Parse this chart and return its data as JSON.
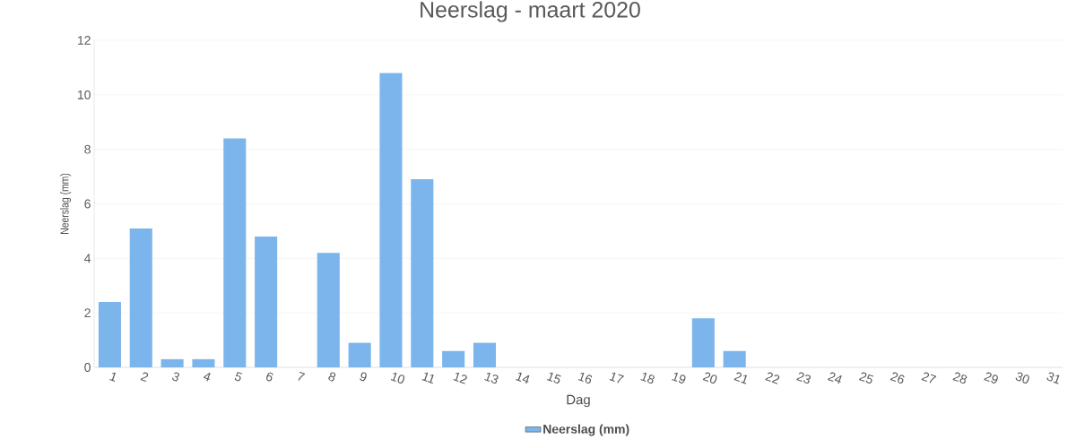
{
  "chart_data": {
    "type": "bar",
    "title": "Neerslag - maart 2020",
    "xlabel": "Dag",
    "ylabel": "Neerslag (mm)",
    "categories": [
      "1",
      "2",
      "3",
      "4",
      "5",
      "6",
      "7",
      "8",
      "9",
      "10",
      "11",
      "12",
      "13",
      "14",
      "15",
      "16",
      "17",
      "18",
      "19",
      "20",
      "21",
      "22",
      "23",
      "24",
      "25",
      "26",
      "27",
      "28",
      "29",
      "30",
      "31"
    ],
    "series": [
      {
        "name": "Neerslag (mm)",
        "color": "#7cb5ec",
        "values": [
          2.4,
          5.1,
          0.3,
          0.3,
          8.4,
          4.8,
          0,
          4.2,
          0.9,
          10.8,
          6.9,
          0.6,
          0.9,
          0,
          0,
          0,
          0,
          0,
          0,
          1.8,
          0.6,
          0,
          0,
          0,
          0,
          0,
          0,
          0,
          0,
          0,
          0
        ]
      }
    ],
    "ylim": [
      0,
      12
    ],
    "yticks": [
      0,
      2,
      4,
      6,
      8,
      10,
      12
    ],
    "grid": "y",
    "legend": "bottom"
  }
}
